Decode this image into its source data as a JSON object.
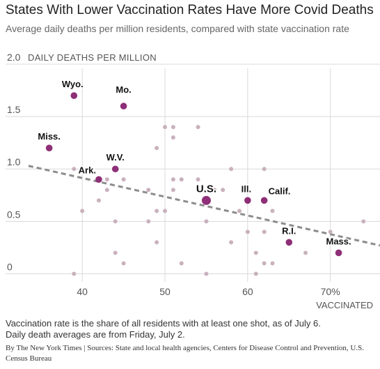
{
  "title": "States With Lower Vaccination Rates Have More Covid Deaths",
  "subtitle": "Average daily deaths per million residents, compared with state vaccination rate",
  "notes": [
    "Vaccination rate is the share of all residents with at least one shot, as of July 6.",
    "Daily death averages are from Friday, July 2."
  ],
  "source": "By The New York Times | Sources: State and local health agencies, Centers for Disease Control and Prevention, U.S. Census Bureau",
  "chart_data": {
    "type": "scatter",
    "title": "States With Lower Vaccination Rates Have More Covid Deaths",
    "xlabel": "VACCINATED",
    "ylabel": "DAILY DEATHS PER MILLION",
    "xlim": [
      33,
      76
    ],
    "ylim": [
      -0.05,
      2.0
    ],
    "x_ticks": [
      40,
      50,
      60,
      70
    ],
    "x_tick_labels": [
      "40",
      "50",
      "60",
      "70%"
    ],
    "y_ticks": [
      0,
      0.5,
      1.0,
      1.5,
      2.0
    ],
    "y_tick_labels": [
      "0",
      "0.5",
      "1.0",
      "1.5",
      "2.0"
    ],
    "grid": true,
    "colors": {
      "highlight": "#8e2f77",
      "other": "#c9b1bd",
      "trend": "#8c8c8c",
      "grid": "#d9d9d9"
    },
    "trendline": {
      "x": [
        33.5,
        76
      ],
      "y": [
        1.03,
        0.27
      ]
    },
    "labeled_points": [
      {
        "label": "Wyo.",
        "x": 39,
        "y": 1.7
      },
      {
        "label": "Mo.",
        "x": 45,
        "y": 1.6
      },
      {
        "label": "Miss.",
        "x": 36,
        "y": 1.2
      },
      {
        "label": "W.V.",
        "x": 44,
        "y": 1.0
      },
      {
        "label": "Ark.",
        "x": 42,
        "y": 0.9
      },
      {
        "label": "U.S.",
        "x": 55,
        "y": 0.7
      },
      {
        "label": "Ill.",
        "x": 60,
        "y": 0.7
      },
      {
        "label": "Calif.",
        "x": 62,
        "y": 0.7
      },
      {
        "label": "R.I.",
        "x": 65,
        "y": 0.3
      },
      {
        "label": "Mass.",
        "x": 71,
        "y": 0.2
      }
    ],
    "other_points": [
      {
        "x": 39,
        "y": 1.0
      },
      {
        "x": 40,
        "y": 1.0
      },
      {
        "x": 40,
        "y": 0.6
      },
      {
        "x": 39,
        "y": 0.0
      },
      {
        "x": 42,
        "y": 0.7
      },
      {
        "x": 43,
        "y": 0.9
      },
      {
        "x": 43,
        "y": 0.8
      },
      {
        "x": 44,
        "y": 0.5
      },
      {
        "x": 44,
        "y": 0.2
      },
      {
        "x": 45,
        "y": 0.1
      },
      {
        "x": 45,
        "y": 0.9
      },
      {
        "x": 48,
        "y": 0.8
      },
      {
        "x": 48,
        "y": 0.5
      },
      {
        "x": 49,
        "y": 0.6
      },
      {
        "x": 49,
        "y": 0.3
      },
      {
        "x": 49,
        "y": 1.2
      },
      {
        "x": 50,
        "y": 1.4
      },
      {
        "x": 50,
        "y": 0.6
      },
      {
        "x": 51,
        "y": 1.4
      },
      {
        "x": 51,
        "y": 1.3
      },
      {
        "x": 51,
        "y": 0.9
      },
      {
        "x": 51,
        "y": 0.8
      },
      {
        "x": 52,
        "y": 0.9
      },
      {
        "x": 52,
        "y": 0.1
      },
      {
        "x": 54,
        "y": 1.4
      },
      {
        "x": 54,
        "y": 0.9
      },
      {
        "x": 54,
        "y": 0.8
      },
      {
        "x": 55,
        "y": 0.0
      },
      {
        "x": 55,
        "y": 0.5
      },
      {
        "x": 56,
        "y": 0.8
      },
      {
        "x": 57,
        "y": 0.8
      },
      {
        "x": 58,
        "y": 1.0
      },
      {
        "x": 58,
        "y": 0.3
      },
      {
        "x": 59,
        "y": 0.6
      },
      {
        "x": 60,
        "y": 0.4
      },
      {
        "x": 61,
        "y": 0.2
      },
      {
        "x": 61,
        "y": 0.0
      },
      {
        "x": 62,
        "y": 1.0
      },
      {
        "x": 62,
        "y": 0.4
      },
      {
        "x": 62,
        "y": 0.1
      },
      {
        "x": 63,
        "y": 0.6
      },
      {
        "x": 63,
        "y": 0.1
      },
      {
        "x": 67,
        "y": 0.2
      },
      {
        "x": 70,
        "y": 0.4
      },
      {
        "x": 74,
        "y": 0.5
      }
    ]
  }
}
